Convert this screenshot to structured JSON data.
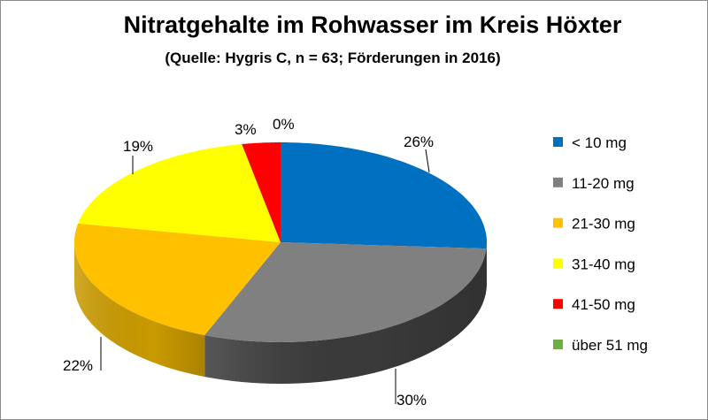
{
  "chart_data": {
    "type": "pie",
    "style": "3d",
    "title": "Nitratgehalte im Rohwasser im Kreis Höxter",
    "subtitle": "(Quelle: Hygris C, n = 63; Förderungen in 2016)",
    "categories": [
      "< 10 mg",
      "11-20 mg",
      "21-30 mg",
      "31-40 mg",
      "41-50 mg",
      "über 51 mg"
    ],
    "values": [
      26,
      30,
      22,
      19,
      3,
      0
    ],
    "data_labels": [
      "26%",
      "30%",
      "22%",
      "19%",
      "3%",
      "0%"
    ],
    "colors": [
      "#0070c0",
      "#808080",
      "#ffc000",
      "#ffff00",
      "#ff0000",
      "#70ad47"
    ],
    "side_colors": [
      "#00508a",
      "#3a3a3a",
      "#c99a00",
      "#c8c800",
      "#b00000",
      "#4f7a32"
    ],
    "legend_position": "right"
  }
}
